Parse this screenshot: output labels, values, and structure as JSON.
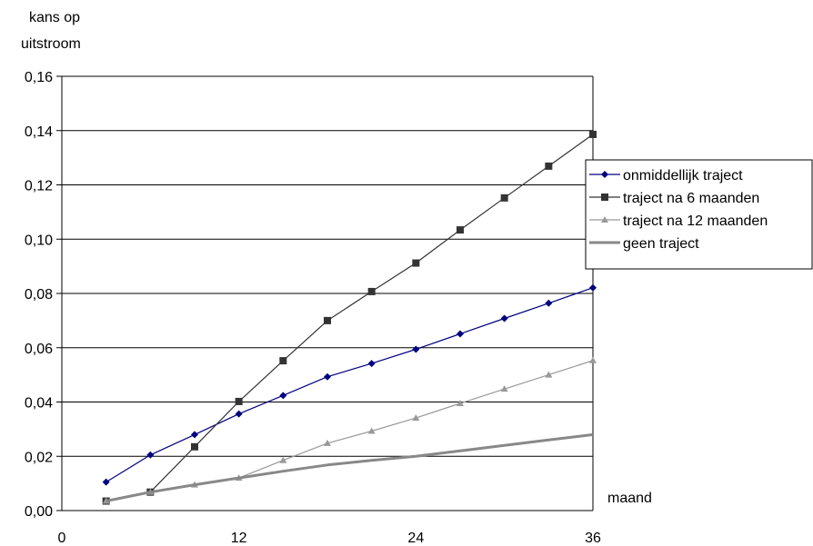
{
  "chart_data": {
    "type": "line",
    "ylabel_line1": "kans op",
    "ylabel_line2": "uitstroom",
    "xlabel": "maand",
    "xlim": [
      0,
      36
    ],
    "ylim": [
      0,
      0.16
    ],
    "xticks": [
      0,
      12,
      24,
      36
    ],
    "xtick_labels": [
      "0",
      "12",
      "24",
      "36"
    ],
    "yticks": [
      0,
      0.02,
      0.04,
      0.06,
      0.08,
      0.1,
      0.12,
      0.14,
      0.16
    ],
    "ytick_labels": [
      "0,00",
      "0,02",
      "0,04",
      "0,06",
      "0,08",
      "0,10",
      "0,12",
      "0,14",
      "0,16"
    ],
    "grid": "horizontal",
    "legend_position": "right",
    "x": [
      3,
      6,
      9,
      12,
      15,
      18,
      21,
      24,
      27,
      30,
      33,
      36
    ],
    "series": [
      {
        "name": "onmiddellijk traject",
        "color": "#000080",
        "marker": "diamond",
        "values": [
          0.0105,
          0.0205,
          0.028,
          0.0356,
          0.0424,
          0.0493,
          0.0542,
          0.0594,
          0.0651,
          0.0708,
          0.0764,
          0.0821
        ]
      },
      {
        "name": "traject na 6 maanden",
        "color": "#333333",
        "marker": "square",
        "values": [
          0.0035,
          0.0068,
          0.0235,
          0.0402,
          0.0552,
          0.07,
          0.0807,
          0.0912,
          0.1034,
          0.1152,
          0.1269,
          0.1386
        ]
      },
      {
        "name": "traject na 12 maanden",
        "color": "#999999",
        "marker": "triangle",
        "values": [
          0.0035,
          0.0068,
          0.0095,
          0.012,
          0.0185,
          0.0248,
          0.0293,
          0.0341,
          0.0395,
          0.0448,
          0.05,
          0.0553
        ]
      },
      {
        "name": "geen traject",
        "color": "#888888",
        "marker": "none",
        "values": [
          0.0035,
          0.0068,
          0.0095,
          0.012,
          0.0145,
          0.0168,
          0.0185,
          0.02,
          0.022,
          0.024,
          0.026,
          0.028
        ]
      }
    ]
  }
}
